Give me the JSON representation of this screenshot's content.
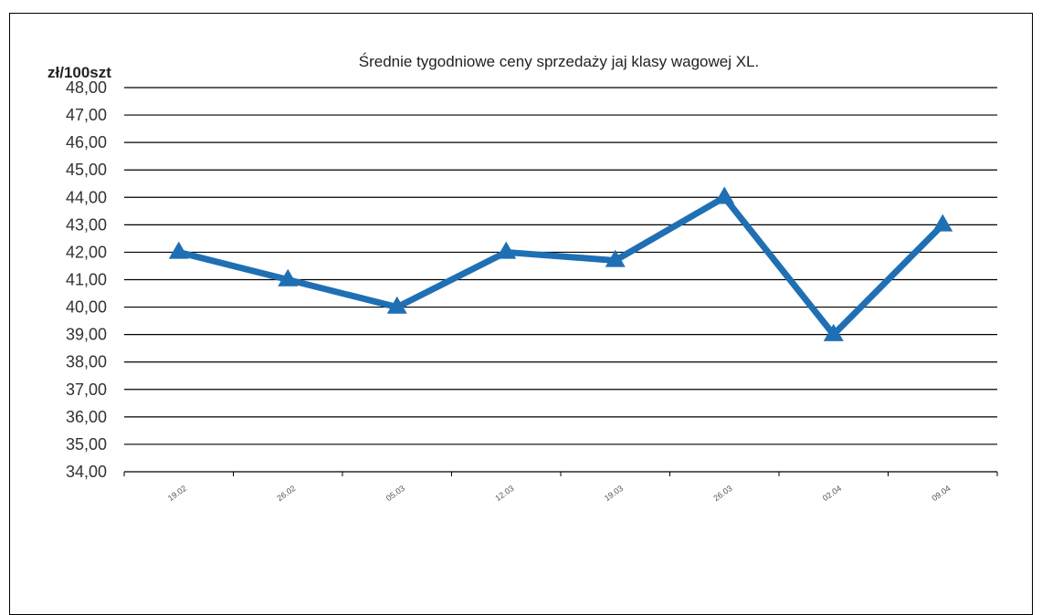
{
  "chart_data": {
    "type": "line",
    "title": "Średnie tygodniowe ceny sprzedaży jaj klasy wagowej XL.",
    "ylabel": "zł/100szt",
    "xlabel": "",
    "ylim": [
      34,
      48
    ],
    "y_ticks": [
      "48,00",
      "47,00",
      "46,00",
      "45,00",
      "44,00",
      "43,00",
      "42,00",
      "41,00",
      "40,00",
      "39,00",
      "38,00",
      "37,00",
      "36,00",
      "35,00",
      "34,00"
    ],
    "categories": [
      "19.02",
      "26.02",
      "05.03",
      "12.03",
      "19.03",
      "26.03",
      "02.04",
      "09.04"
    ],
    "series": [
      {
        "values": [
          42.0,
          41.0,
          40.0,
          42.0,
          41.7,
          44.0,
          39.0,
          43.0
        ]
      }
    ],
    "grid": true,
    "legend": "none",
    "series_color": "#1f6fb4",
    "marker": "triangle"
  }
}
